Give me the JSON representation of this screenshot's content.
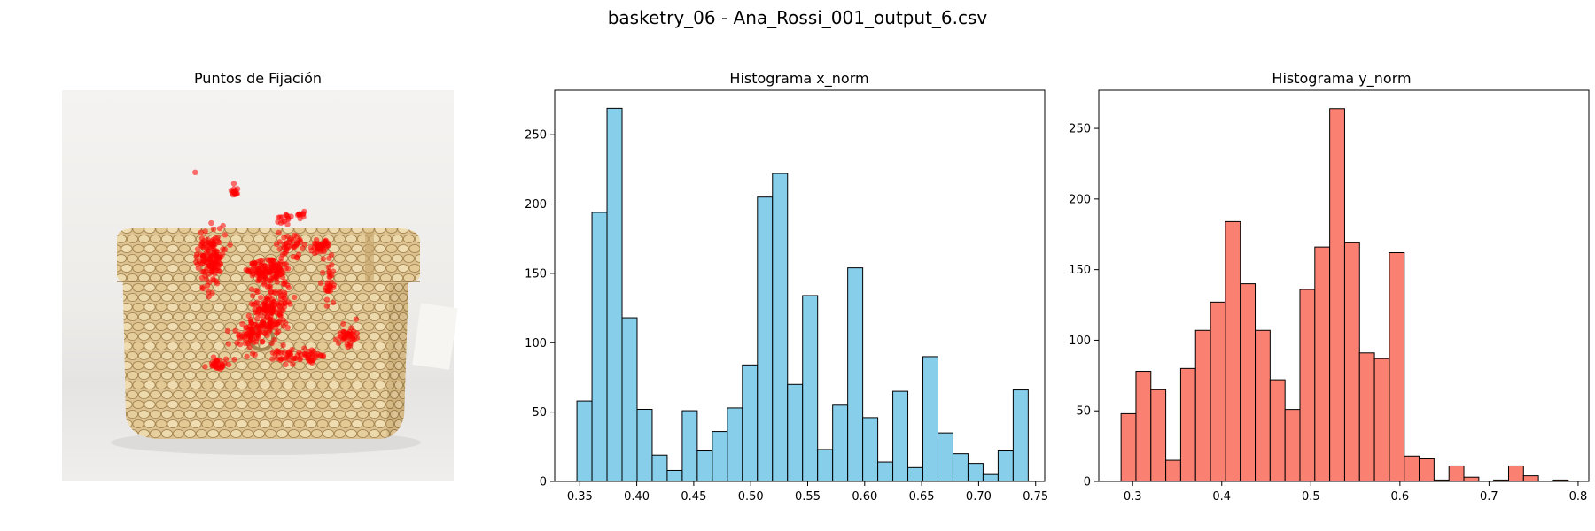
{
  "figure": {
    "suptitle": "basketry_06 - Ana_Rossi_001_output_6.csv"
  },
  "colors": {
    "hist_x": "#87ceeb",
    "hist_y": "#fa8072",
    "edge": "#000000",
    "fixation": "#ff0000"
  },
  "chart_data": [
    {
      "type": "scatter",
      "title": "Puntos de Fijación",
      "background": "photograph of a woven wicker basket box with lid",
      "axes_visible": false,
      "points_note": "dense cloud of red fixation points over the basket front and lid",
      "xlim": [
        0,
        1
      ],
      "ylim": [
        1,
        0
      ],
      "clusters": [
        {
          "x": 0.38,
          "y": 0.43,
          "n": 140,
          "spread": [
            0.025,
            0.05
          ]
        },
        {
          "x": 0.52,
          "y": 0.46,
          "n": 120,
          "spread": [
            0.04,
            0.02
          ]
        },
        {
          "x": 0.53,
          "y": 0.57,
          "n": 160,
          "spread": [
            0.035,
            0.045
          ]
        },
        {
          "x": 0.66,
          "y": 0.4,
          "n": 40,
          "spread": [
            0.02,
            0.01
          ]
        },
        {
          "x": 0.68,
          "y": 0.49,
          "n": 30,
          "spread": [
            0.012,
            0.04
          ]
        },
        {
          "x": 0.73,
          "y": 0.63,
          "n": 40,
          "spread": [
            0.02,
            0.02
          ]
        },
        {
          "x": 0.64,
          "y": 0.68,
          "n": 30,
          "spread": [
            0.02,
            0.01
          ]
        },
        {
          "x": 0.58,
          "y": 0.68,
          "n": 30,
          "spread": [
            0.03,
            0.015
          ]
        },
        {
          "x": 0.48,
          "y": 0.62,
          "n": 60,
          "spread": [
            0.03,
            0.03
          ]
        },
        {
          "x": 0.4,
          "y": 0.7,
          "n": 30,
          "spread": [
            0.018,
            0.012
          ]
        },
        {
          "x": 0.44,
          "y": 0.26,
          "n": 14,
          "spread": [
            0.008,
            0.01
          ]
        },
        {
          "x": 0.57,
          "y": 0.33,
          "n": 14,
          "spread": [
            0.012,
            0.012
          ]
        },
        {
          "x": 0.61,
          "y": 0.32,
          "n": 10,
          "spread": [
            0.005,
            0.01
          ]
        },
        {
          "x": 0.34,
          "y": 0.21,
          "n": 1,
          "spread": [
            0,
            0
          ]
        },
        {
          "x": 0.58,
          "y": 0.4,
          "n": 40,
          "spread": [
            0.03,
            0.03
          ]
        }
      ]
    },
    {
      "type": "bar",
      "title": "Histograma x_norm",
      "xlabel": "",
      "ylabel": "",
      "bin_start": 0.3475,
      "bin_width": 0.0132,
      "values": [
        58,
        194,
        269,
        118,
        52,
        19,
        8,
        51,
        22,
        36,
        53,
        84,
        205,
        222,
        70,
        134,
        23,
        55,
        154,
        46,
        14,
        65,
        10,
        90,
        35,
        20,
        13,
        5,
        22,
        66
      ],
      "xlim": [
        0.328,
        0.758
      ],
      "ylim": [
        0,
        282
      ],
      "xticks": [
        0.35,
        0.4,
        0.45,
        0.5,
        0.55,
        0.6,
        0.65,
        0.7,
        0.75
      ],
      "xticklabels": [
        "0.35",
        "0.40",
        "0.45",
        "0.50",
        "0.55",
        "0.60",
        "0.65",
        "0.70",
        "0.75"
      ],
      "yticks": [
        0,
        50,
        100,
        150,
        200,
        250
      ],
      "yticklabels": [
        "0",
        "50",
        "100",
        "150",
        "200",
        "250"
      ],
      "grid": false
    },
    {
      "type": "bar",
      "title": "Histograma y_norm",
      "xlabel": "",
      "ylabel": "",
      "bin_start": 0.287,
      "bin_width": 0.01673,
      "values": [
        48,
        78,
        65,
        15,
        80,
        107,
        127,
        184,
        140,
        107,
        72,
        51,
        136,
        166,
        264,
        169,
        91,
        87,
        162,
        18,
        16,
        1,
        11,
        3,
        0,
        1,
        11,
        4,
        0,
        1
      ],
      "xlim": [
        0.262,
        0.812
      ],
      "ylim": [
        0,
        277
      ],
      "xticks": [
        0.3,
        0.4,
        0.5,
        0.6,
        0.7,
        0.8
      ],
      "xticklabels": [
        "0.3",
        "0.4",
        "0.5",
        "0.6",
        "0.7",
        "0.8"
      ],
      "yticks": [
        0,
        50,
        100,
        150,
        200,
        250
      ],
      "yticklabels": [
        "0",
        "50",
        "100",
        "150",
        "200",
        "250"
      ],
      "grid": false
    }
  ]
}
